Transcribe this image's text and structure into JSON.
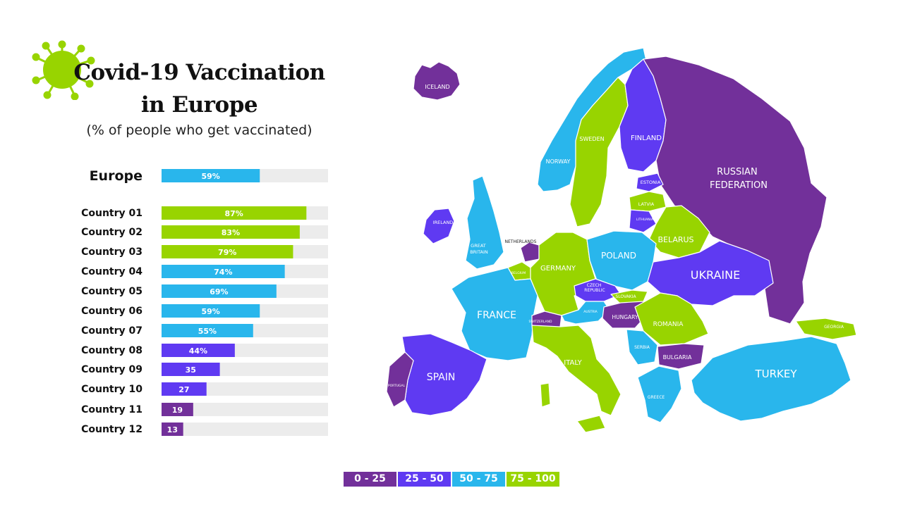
{
  "header": {
    "title_line1": "Covid-19 Vaccination",
    "title_line2": "in Europe",
    "subtitle": "(% of people who get vaccinated)"
  },
  "colors": {
    "q1": "#72309a",
    "q2": "#5f3af2",
    "q3": "#29b6ec",
    "q4": "#98d400",
    "track": "#ececec"
  },
  "chart_data": {
    "type": "bar",
    "orientation": "horizontal",
    "xlim": [
      0,
      100
    ],
    "categories": [
      "Europe",
      "Country 01",
      "Country 02",
      "Country 03",
      "Country 04",
      "Country 05",
      "Country 06",
      "Country 07",
      "Country 08",
      "Country 09",
      "Country 10",
      "Country 11",
      "Country 12"
    ],
    "values": [
      59,
      87,
      83,
      79,
      74,
      69,
      59,
      55,
      44,
      35,
      27,
      19,
      13
    ],
    "labels": [
      "59%",
      "87%",
      "83%",
      "79%",
      "74%",
      "69%",
      "59%",
      "55%",
      "44%",
      "35",
      "27",
      "19",
      "13"
    ]
  },
  "map": {
    "countries": [
      {
        "name": "ICELAND",
        "cls": "q1"
      },
      {
        "name": "NORWAY",
        "cls": "q3"
      },
      {
        "name": "SWEDEN",
        "cls": "q4"
      },
      {
        "name": "FINLAND",
        "cls": "q2"
      },
      {
        "name": "RUSSIAN FEDERATION",
        "cls": "q1"
      },
      {
        "name": "ESTONIA",
        "cls": "q2"
      },
      {
        "name": "LATVIA",
        "cls": "q4"
      },
      {
        "name": "LITHUANIA",
        "cls": "q2"
      },
      {
        "name": "BELARUS",
        "cls": "q4"
      },
      {
        "name": "IRELAND",
        "cls": "q2"
      },
      {
        "name": "GREAT BRITAIN",
        "cls": "q3"
      },
      {
        "name": "NETHERLANDS",
        "cls": "q1"
      },
      {
        "name": "BELGIUM",
        "cls": "q4"
      },
      {
        "name": "GERMANY",
        "cls": "q4"
      },
      {
        "name": "POLAND",
        "cls": "q3"
      },
      {
        "name": "UKRAINE",
        "cls": "q2"
      },
      {
        "name": "FRANCE",
        "cls": "q3"
      },
      {
        "name": "CZECH REPUBLIC",
        "cls": "q2"
      },
      {
        "name": "SLOVAKIA",
        "cls": "q4"
      },
      {
        "name": "AUSTRIA",
        "cls": "q3"
      },
      {
        "name": "SWITZERLAND",
        "cls": "q1"
      },
      {
        "name": "HUNGARY",
        "cls": "q1"
      },
      {
        "name": "ROMANIA",
        "cls": "q4"
      },
      {
        "name": "SERBIA",
        "cls": "q3"
      },
      {
        "name": "BULGARIA",
        "cls": "q1"
      },
      {
        "name": "ITALY",
        "cls": "q4"
      },
      {
        "name": "SPAIN",
        "cls": "q2"
      },
      {
        "name": "PORTUGAL",
        "cls": "q1"
      },
      {
        "name": "GREECE",
        "cls": "q3"
      },
      {
        "name": "TURKEY",
        "cls": "q3"
      },
      {
        "name": "GEORGIA",
        "cls": "q4"
      }
    ]
  },
  "legend": [
    {
      "label": "0 - 25",
      "cls": "q1"
    },
    {
      "label": "25 - 50",
      "cls": "q2"
    },
    {
      "label": "50 - 75",
      "cls": "q3"
    },
    {
      "label": "75 - 100",
      "cls": "q4"
    }
  ]
}
